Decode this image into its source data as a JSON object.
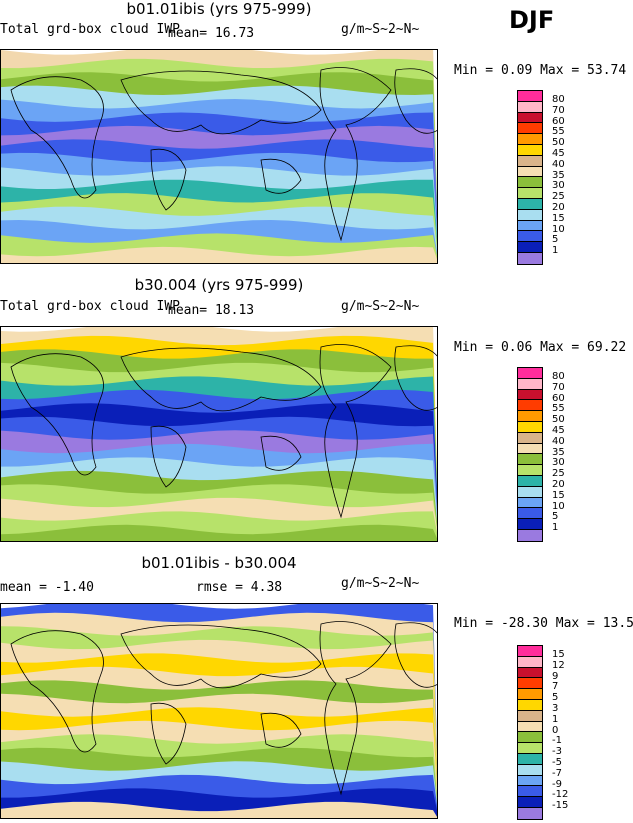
{
  "season": "DJF",
  "panels": [
    {
      "title": "b01.01ibis (yrs 975-999)",
      "variable": "Total grd-box cloud IWP",
      "stat_left": "",
      "stat_mid": "mean=  16.73",
      "units": "g/m~S~2~N~",
      "minmax": "Min =   0.09 Max =  53.74",
      "legend_labels": [
        "80",
        "70",
        "60",
        "55",
        "50",
        "45",
        "40",
        "35",
        "30",
        "25",
        "20",
        "15",
        "10",
        "5",
        "1"
      ],
      "legend_colors": [
        "#ff2d9b",
        "#ffb6c8",
        "#c8102e",
        "#ff3c00",
        "#ff9a00",
        "#ffd700",
        "#d9b48a",
        "#f5deb3",
        "#8bbf3b",
        "#b7e26a",
        "#2db3a8",
        "#a9def0",
        "#6ba4f5",
        "#3a5be8",
        "#0a1fb8",
        "#9a7ae0"
      ],
      "stripes": [
        "#f2d8ae",
        "#b7e26a",
        "#8bbf3b",
        "#a9def0",
        "#6ba4f5",
        "#3a5be8",
        "#9a7ae0",
        "#3a5be8",
        "#6ba4f5",
        "#a9def0",
        "#2db3a8",
        "#b7e26a",
        "#a9def0",
        "#6ba4f5",
        "#b7e26a",
        "#f5deb3"
      ]
    },
    {
      "title": "b30.004 (yrs 975-999)",
      "variable": "Total grd-box cloud IWP",
      "stat_left": "",
      "stat_mid": "mean=  18.13",
      "units": "g/m~S~2~N~",
      "minmax": "Min =   0.06 Max =  69.22",
      "legend_labels": [
        "80",
        "70",
        "60",
        "55",
        "50",
        "45",
        "40",
        "35",
        "30",
        "25",
        "20",
        "15",
        "10",
        "5",
        "1"
      ],
      "legend_colors": [
        "#ff2d9b",
        "#ffb6c8",
        "#c8102e",
        "#ff3c00",
        "#ff9a00",
        "#ffd700",
        "#d9b48a",
        "#f5deb3",
        "#8bbf3b",
        "#b7e26a",
        "#2db3a8",
        "#a9def0",
        "#6ba4f5",
        "#3a5be8",
        "#0a1fb8",
        "#9a7ae0"
      ],
      "stripes": [
        "#f5deb3",
        "#ffd700",
        "#8bbf3b",
        "#b7e26a",
        "#2db3a8",
        "#3a5be8",
        "#0a1fb8",
        "#3a5be8",
        "#9a7ae0",
        "#6ba4f5",
        "#a9def0",
        "#8bbf3b",
        "#b7e26a",
        "#f5deb3",
        "#b7e26a",
        "#8bbf3b"
      ]
    },
    {
      "title": "b01.01ibis - b30.004",
      "variable": "",
      "stat_left": "mean =  -1.40",
      "stat_mid": "rmse =   4.38",
      "units": "g/m~S~2~N~",
      "minmax": "Min = -28.30 Max =  13.59",
      "legend_labels": [
        "15",
        "12",
        "9",
        "7",
        "5",
        "3",
        "1",
        "0",
        "-1",
        "-3",
        "-5",
        "-7",
        "-9",
        "-12",
        "-15"
      ],
      "legend_colors": [
        "#ff2d9b",
        "#ffb6c8",
        "#c8102e",
        "#ff3c00",
        "#ff9a00",
        "#ffd700",
        "#d9b48a",
        "#f5deb3",
        "#8bbf3b",
        "#b7e26a",
        "#2db3a8",
        "#a9def0",
        "#6ba4f5",
        "#3a5be8",
        "#0a1fb8",
        "#9a7ae0"
      ],
      "stripes": [
        "#3a5be8",
        "#f5deb3",
        "#b7e26a",
        "#f5deb3",
        "#ffd700",
        "#f5deb3",
        "#8bbf3b",
        "#f5deb3",
        "#ffd700",
        "#f5deb3",
        "#b7e26a",
        "#8bbf3b",
        "#a9def0",
        "#3a5be8",
        "#0a1fb8",
        "#f5deb3"
      ]
    }
  ]
}
